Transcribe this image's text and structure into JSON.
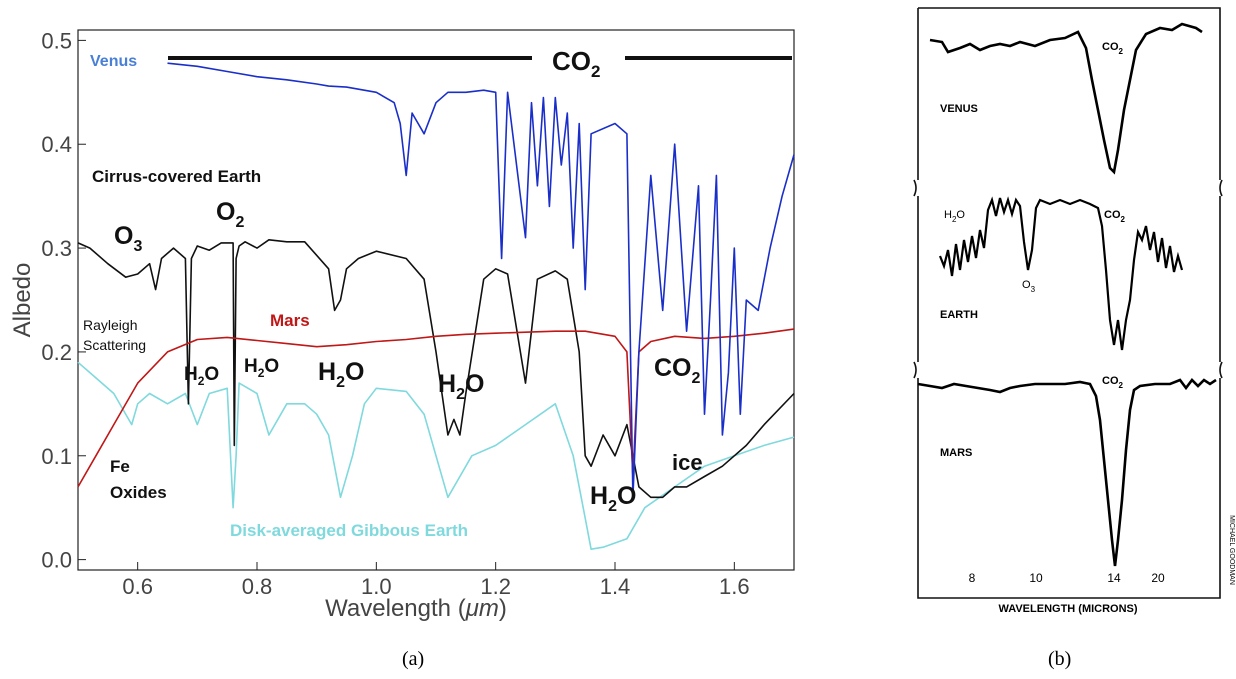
{
  "captions": {
    "a": "(a)",
    "b": "(b)"
  },
  "chart_data": [
    {
      "type": "line",
      "panel": "a",
      "xlabel_prefix": "Wavelength (",
      "xlabel_unit": "μm",
      "xlabel_suffix": ")",
      "ylabel": "Albedo",
      "xlim": [
        0.5,
        1.7
      ],
      "ylim": [
        -0.01,
        0.51
      ],
      "xticks": [
        0.6,
        0.8,
        1.0,
        1.2,
        1.4,
        1.6
      ],
      "xtick_labels": [
        "0.6",
        "0.8",
        "1.0",
        "1.2",
        "1.4",
        "1.6"
      ],
      "yticks": [
        0.0,
        0.1,
        0.2,
        0.3,
        0.4,
        0.5
      ],
      "ytick_labels": [
        "0.0",
        "0.1",
        "0.2",
        "0.3",
        "0.4",
        "0.5"
      ],
      "grid": false,
      "legend": "none",
      "series": [
        {
          "name": "Venus",
          "color": "#1a2fc9",
          "x": [
            0.65,
            0.7,
            0.75,
            0.8,
            0.85,
            0.9,
            0.92,
            0.95,
            1.0,
            1.03,
            1.04,
            1.05,
            1.06,
            1.08,
            1.1,
            1.12,
            1.15,
            1.18,
            1.2,
            1.21,
            1.22,
            1.25,
            1.26,
            1.27,
            1.28,
            1.29,
            1.3,
            1.31,
            1.32,
            1.33,
            1.34,
            1.35,
            1.36,
            1.4,
            1.42,
            1.43,
            1.44,
            1.46,
            1.48,
            1.5,
            1.52,
            1.54,
            1.55,
            1.56,
            1.57,
            1.58,
            1.59,
            1.6,
            1.61,
            1.62,
            1.64,
            1.66,
            1.68,
            1.7
          ],
          "y": [
            0.478,
            0.475,
            0.47,
            0.465,
            0.462,
            0.458,
            0.456,
            0.455,
            0.45,
            0.44,
            0.42,
            0.37,
            0.43,
            0.41,
            0.44,
            0.45,
            0.45,
            0.452,
            0.45,
            0.29,
            0.45,
            0.31,
            0.44,
            0.36,
            0.445,
            0.34,
            0.445,
            0.38,
            0.43,
            0.3,
            0.42,
            0.26,
            0.41,
            0.42,
            0.41,
            0.06,
            0.2,
            0.37,
            0.24,
            0.4,
            0.22,
            0.36,
            0.14,
            0.25,
            0.37,
            0.12,
            0.18,
            0.3,
            0.14,
            0.25,
            0.24,
            0.3,
            0.35,
            0.39
          ]
        },
        {
          "name": "Cirrus-covered Earth",
          "color": "#111111",
          "x": [
            0.5,
            0.52,
            0.55,
            0.58,
            0.6,
            0.62,
            0.63,
            0.64,
            0.66,
            0.68,
            0.685,
            0.69,
            0.7,
            0.72,
            0.74,
            0.76,
            0.762,
            0.765,
            0.77,
            0.78,
            0.8,
            0.82,
            0.85,
            0.88,
            0.92,
            0.93,
            0.94,
            0.95,
            0.97,
            1.0,
            1.05,
            1.08,
            1.1,
            1.12,
            1.13,
            1.14,
            1.15,
            1.18,
            1.2,
            1.22,
            1.25,
            1.27,
            1.3,
            1.32,
            1.34,
            1.35,
            1.36,
            1.38,
            1.4,
            1.42,
            1.43,
            1.44,
            1.46,
            1.48,
            1.5,
            1.52,
            1.55,
            1.58,
            1.6,
            1.62,
            1.65,
            1.7
          ],
          "y": [
            0.305,
            0.3,
            0.285,
            0.272,
            0.275,
            0.285,
            0.26,
            0.29,
            0.3,
            0.29,
            0.15,
            0.29,
            0.302,
            0.298,
            0.305,
            0.305,
            0.11,
            0.29,
            0.302,
            0.306,
            0.3,
            0.308,
            0.306,
            0.306,
            0.28,
            0.24,
            0.25,
            0.28,
            0.29,
            0.297,
            0.29,
            0.27,
            0.2,
            0.12,
            0.135,
            0.12,
            0.16,
            0.27,
            0.28,
            0.275,
            0.17,
            0.27,
            0.278,
            0.27,
            0.2,
            0.1,
            0.09,
            0.12,
            0.1,
            0.13,
            0.1,
            0.07,
            0.06,
            0.06,
            0.07,
            0.07,
            0.08,
            0.09,
            0.1,
            0.11,
            0.13,
            0.16
          ]
        },
        {
          "name": "Mars",
          "color": "#c01717",
          "x": [
            0.5,
            0.53,
            0.56,
            0.6,
            0.65,
            0.7,
            0.75,
            0.8,
            0.85,
            0.9,
            0.95,
            1.0,
            1.05,
            1.1,
            1.15,
            1.2,
            1.25,
            1.3,
            1.35,
            1.4,
            1.42,
            1.43,
            1.44,
            1.46,
            1.5,
            1.55,
            1.6,
            1.65,
            1.7
          ],
          "y": [
            0.07,
            0.1,
            0.13,
            0.17,
            0.2,
            0.212,
            0.214,
            0.211,
            0.208,
            0.205,
            0.207,
            0.21,
            0.212,
            0.215,
            0.217,
            0.218,
            0.219,
            0.22,
            0.22,
            0.215,
            0.2,
            0.08,
            0.2,
            0.21,
            0.215,
            0.213,
            0.215,
            0.218,
            0.222
          ]
        },
        {
          "name": "Disk-averaged Gibbous Earth",
          "color": "#7fd9dd",
          "x": [
            0.5,
            0.53,
            0.56,
            0.59,
            0.6,
            0.62,
            0.65,
            0.68,
            0.7,
            0.72,
            0.75,
            0.76,
            0.765,
            0.77,
            0.8,
            0.82,
            0.85,
            0.88,
            0.9,
            0.92,
            0.94,
            0.96,
            0.98,
            1.0,
            1.05,
            1.08,
            1.1,
            1.12,
            1.14,
            1.16,
            1.2,
            1.25,
            1.3,
            1.33,
            1.35,
            1.36,
            1.38,
            1.42,
            1.45,
            1.5,
            1.55,
            1.6,
            1.65,
            1.7
          ],
          "y": [
            0.19,
            0.175,
            0.16,
            0.13,
            0.15,
            0.16,
            0.15,
            0.16,
            0.13,
            0.16,
            0.165,
            0.05,
            0.1,
            0.17,
            0.16,
            0.12,
            0.15,
            0.15,
            0.14,
            0.12,
            0.06,
            0.1,
            0.15,
            0.165,
            0.162,
            0.14,
            0.1,
            0.06,
            0.08,
            0.1,
            0.11,
            0.13,
            0.15,
            0.1,
            0.04,
            0.01,
            0.012,
            0.02,
            0.05,
            0.07,
            0.09,
            0.1,
            0.11,
            0.118
          ]
        }
      ],
      "annotations": {
        "venus": "Venus",
        "co2_top": "CO",
        "co2_top_sub": "2",
        "cirrus": "Cirrus-covered Earth",
        "o3": "O",
        "o3_sub": "3",
        "o2": "O",
        "o2_sub": "2",
        "mars": "Mars",
        "rayleigh_1": "Rayleigh",
        "rayleigh_2": "Scattering",
        "h2o_1_a": "H",
        "h2o_1_sub": "2",
        "h2o_1_b": "O",
        "h2o_2_a": "H",
        "h2o_2_sub": "2",
        "h2o_2_b": "O",
        "h2o_3_a": "H",
        "h2o_3_sub": "2",
        "h2o_3_b": "O",
        "h2o_4_a": "H",
        "h2o_4_sub": "2",
        "h2o_4_b": "O",
        "h2o_5_a": "H",
        "h2o_5_sub": "2",
        "h2o_5_b": "O",
        "co2_mid": "CO",
        "co2_mid_sub": "2",
        "fe_1": "Fe",
        "fe_2": "Oxides",
        "ice": "ice",
        "gibbous": "Disk-averaged Gibbous Earth"
      }
    },
    {
      "type": "line",
      "panel": "b",
      "xlabel": "WAVELENGTH (MICRONS)",
      "xtick_labels": [
        "8",
        "10",
        "14",
        "20"
      ],
      "credit": "MICHAEL GOODMAN",
      "subpanels": [
        {
          "name": "VENUS",
          "band_a": "CO",
          "band_sub": "2"
        },
        {
          "name": "EARTH",
          "band_a": "CO",
          "band_sub": "2",
          "h2o_a": "H",
          "h2o_sub": "2",
          "h2o_b": "O",
          "o3_a": "O",
          "o3_sub": "3"
        },
        {
          "name": "MARS",
          "band_a": "CO",
          "band_sub": "2"
        }
      ]
    }
  ]
}
